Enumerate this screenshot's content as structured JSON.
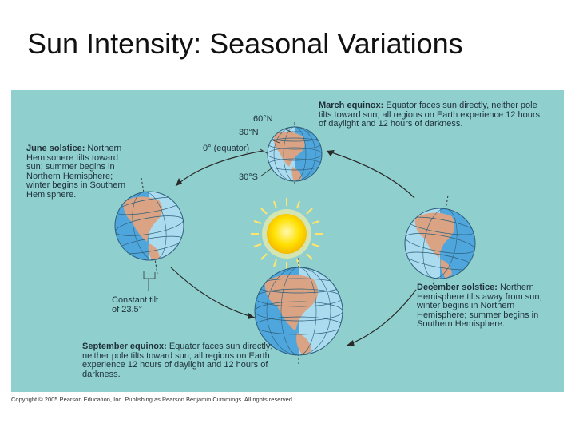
{
  "slide": {
    "title": "Sun Intensity: Seasonal Variations"
  },
  "diagram": {
    "march": {
      "heading": "March equinox:",
      "text": "Equator faces sun directly, neither pole tilts toward sun; all regions on Earth experience 12 hours of daylight and 12 hours of darkness."
    },
    "june": {
      "heading": "June solstice:",
      "text": "Northern Hemisohere tilts toward sun; summer begins in Northern Hemisphere; winter begins in Southern Hemisphere."
    },
    "december": {
      "heading": "December solstice:",
      "text": "Northern Hemisphere tilts away from sun; winter begins in Northern Hemisphere; summer begins in Southern Hemisphere."
    },
    "september": {
      "heading": "September equinox:",
      "text": "Equator faces sun directly; neither pole tilts toward sun; all regions on Earth experience 12 hours of daylight and 12 hours of darkness."
    },
    "latitudes": {
      "lat60": "60°N",
      "lat30n": "30°N",
      "equator": "0° (equator)",
      "lat30s": "30°S"
    },
    "tilt": {
      "line1": "Constant tilt",
      "line2": "of 23.5°"
    },
    "colors": {
      "background": "#8fd0cf",
      "ocean": "#4fa6dc",
      "land": "#d9a384",
      "day": "#c9ecf6",
      "sun": "#ffe000"
    }
  },
  "footer": {
    "copyright": "Copyright © 2005 Pearson Education, Inc. Publishing as Pearson Benjamin Cummings. All rights reserved."
  }
}
